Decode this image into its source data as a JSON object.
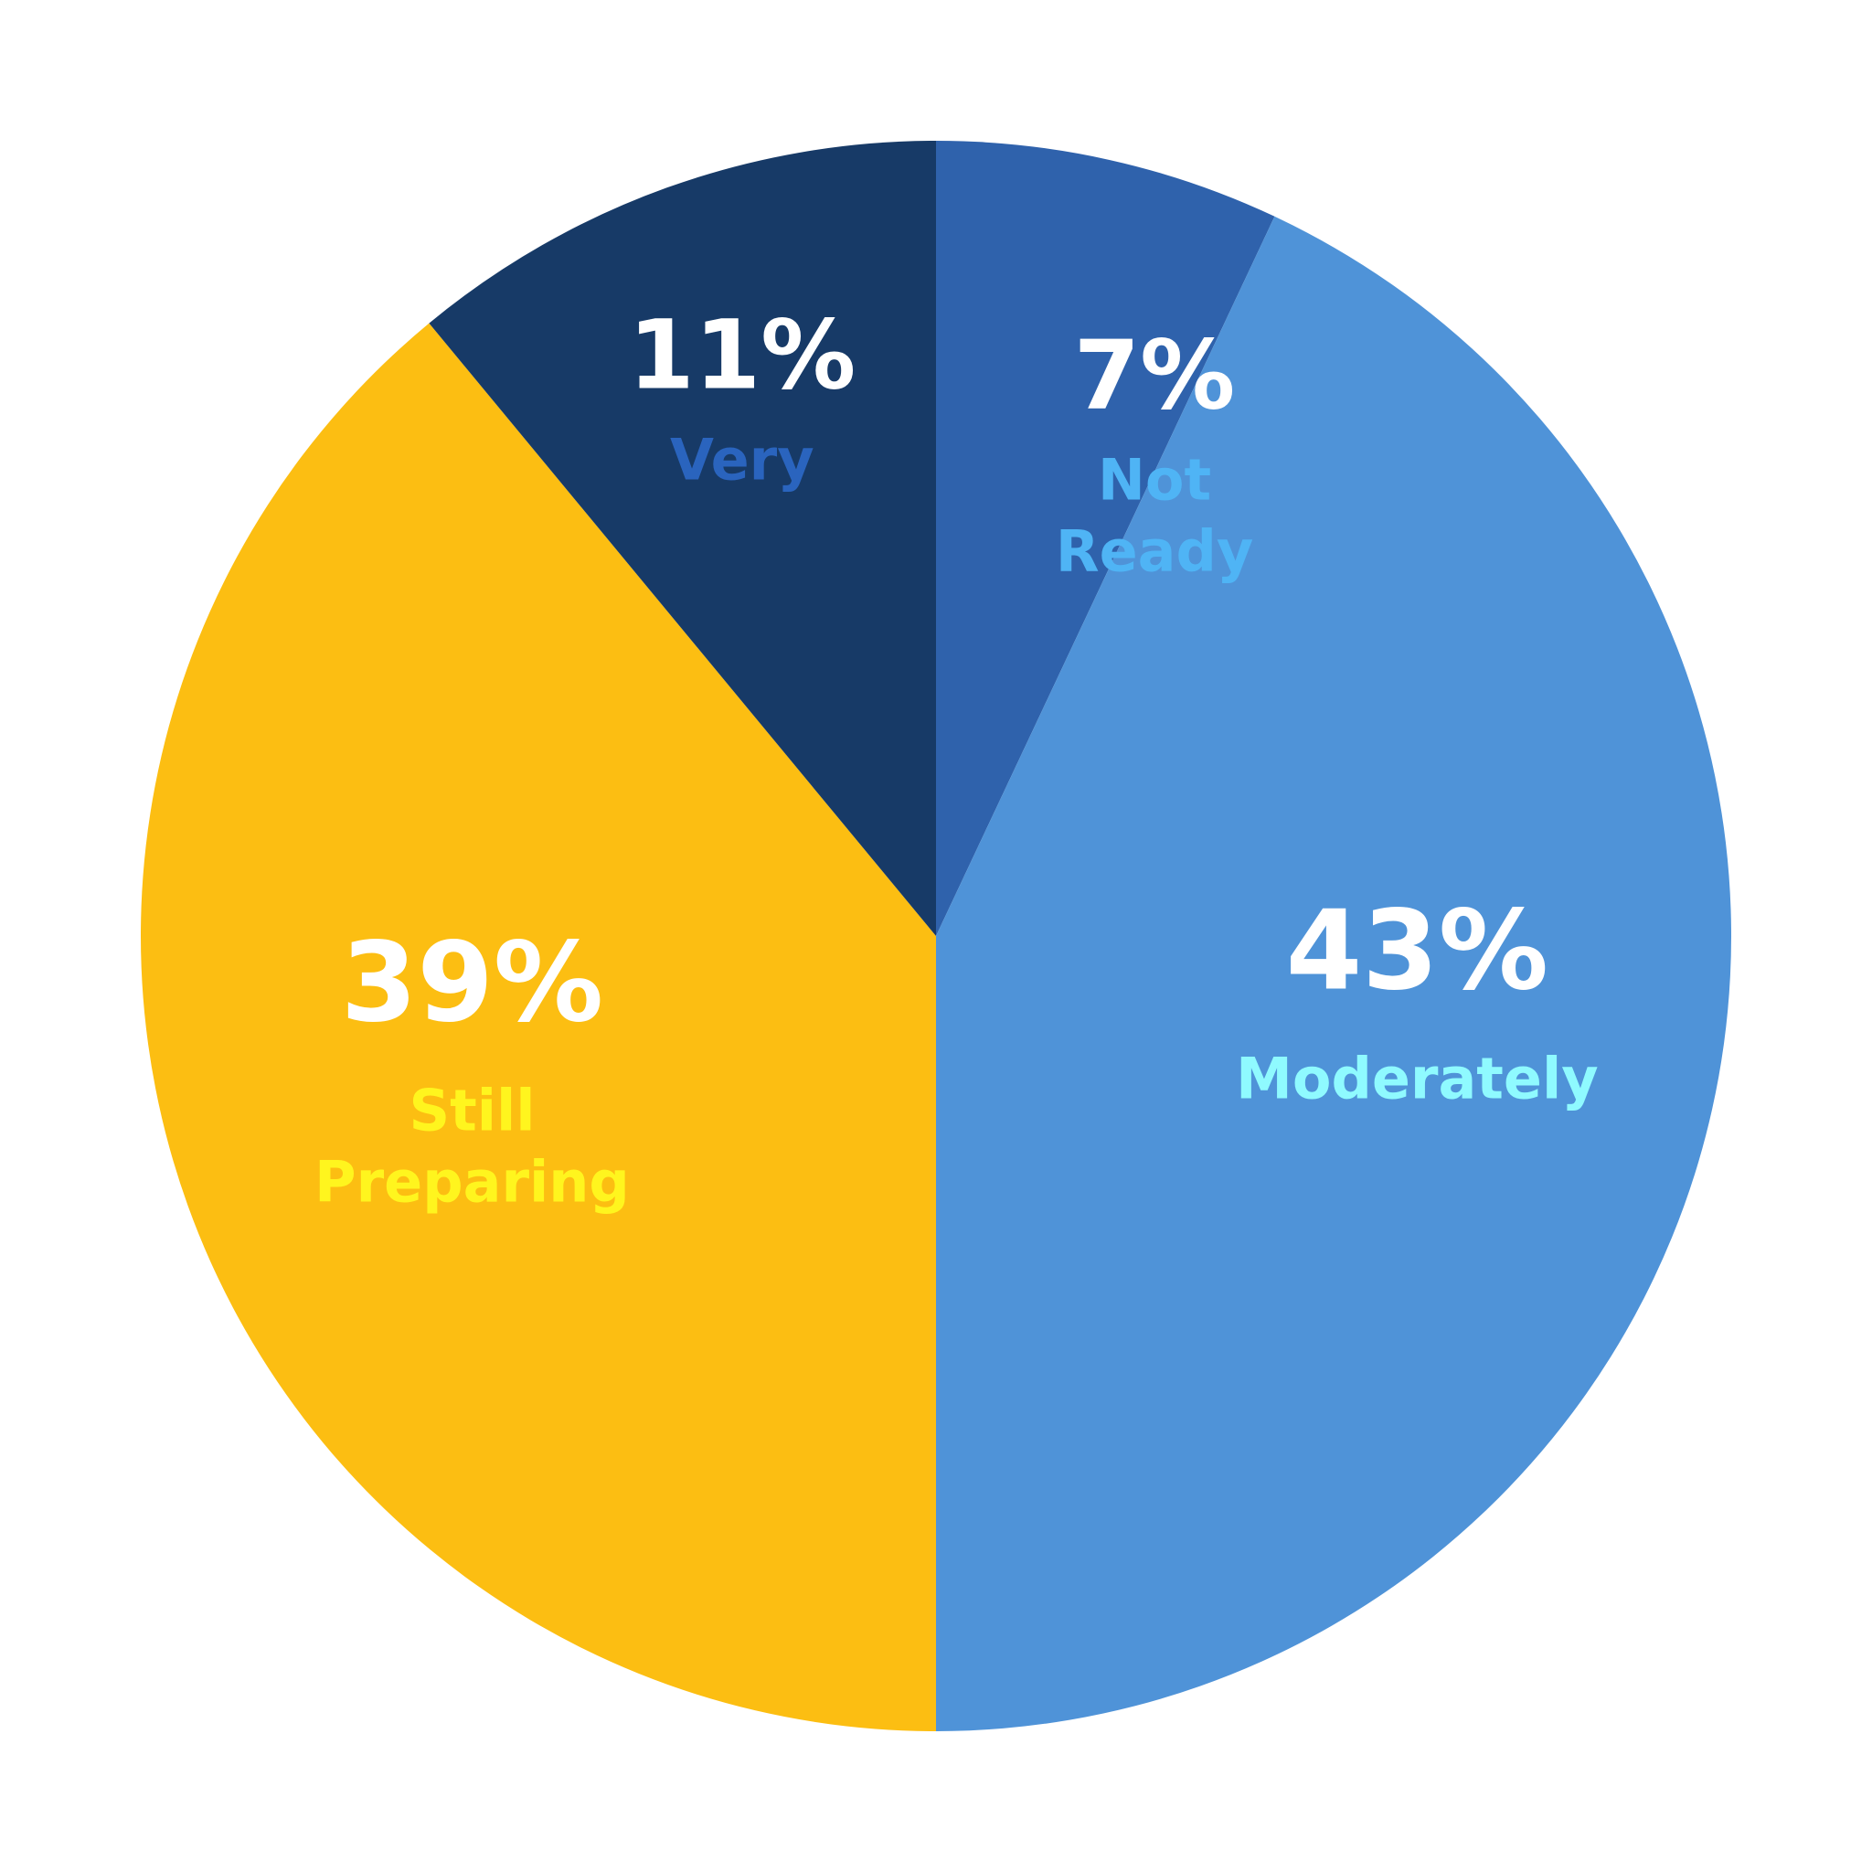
{
  "chart_data": {
    "type": "pie",
    "start_angle_deg": 0,
    "direction": "clockwise",
    "slices": [
      {
        "name_lines": [
          "Not",
          "Ready"
        ],
        "value": 7,
        "pct_label": "7%",
        "color": "#2F62AC",
        "label_color": "#4FB4F5"
      },
      {
        "name_lines": [
          "Moderately"
        ],
        "value": 43,
        "pct_label": "43%",
        "color": "#4F93D8",
        "label_color": "#8FFAFF"
      },
      {
        "name_lines": [
          "Still",
          "Preparing"
        ],
        "value": 39,
        "pct_label": "39%",
        "color": "#FCBE12",
        "label_color": "#FFF51E"
      },
      {
        "name_lines": [
          "Very"
        ],
        "value": 11,
        "pct_label": "11%",
        "color": "#173A67",
        "label_color": "#2A64BE"
      }
    ]
  }
}
